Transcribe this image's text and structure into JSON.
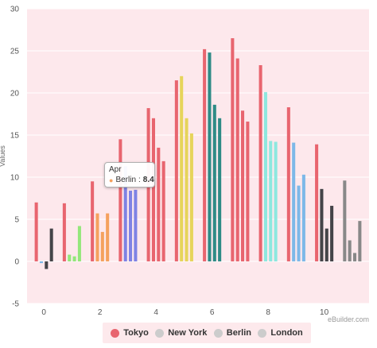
{
  "chart_data": {
    "type": "bar",
    "title": "",
    "xlabel": "",
    "ylabel": "Values",
    "xlim": [
      -0.6,
      11.6
    ],
    "ylim": [
      -5,
      30
    ],
    "x_ticks": [
      0,
      2,
      4,
      6,
      8,
      10
    ],
    "y_ticks": [
      -5,
      0,
      5,
      10,
      15,
      20,
      25,
      30
    ],
    "grid": "horizontal",
    "background": "#fde8ec",
    "legend_position": "bottom-center",
    "x": [
      0,
      1,
      2,
      3,
      4,
      5,
      6,
      7,
      8,
      9,
      10,
      11
    ],
    "series": [
      {
        "name": "Tokyo",
        "values": [
          7.0,
          6.9,
          9.5,
          14.5,
          18.2,
          21.5,
          25.2,
          26.5,
          23.3,
          18.3,
          13.9,
          9.6
        ]
      },
      {
        "name": "New York",
        "values": [
          -0.2,
          0.8,
          5.7,
          11.3,
          17.0,
          22.0,
          24.8,
          24.1,
          20.1,
          14.1,
          8.6,
          2.5
        ]
      },
      {
        "name": "Berlin",
        "values": [
          -0.9,
          0.6,
          3.5,
          8.4,
          13.5,
          17.0,
          18.6,
          17.9,
          14.3,
          9.0,
          3.9,
          1.0
        ]
      },
      {
        "name": "London",
        "values": [
          3.9,
          4.2,
          5.7,
          8.5,
          11.9,
          15.2,
          17.0,
          16.6,
          14.2,
          10.3,
          6.6,
          4.8
        ]
      }
    ],
    "point_colors": [
      "#e8656f",
      "#7db8e8",
      "#444448",
      "#444448",
      "#e8656f",
      "#93e77a",
      "#93e77a",
      "#93e77a",
      "#e8656f",
      "#f5a15e",
      "#f5a15e",
      "#f5a15e",
      "#e8656f",
      "#7e82e4",
      "#7e82e4",
      "#7e82e4",
      "#e8656f",
      "#e8656f",
      "#e8656f",
      "#e8656f",
      "#e8656f",
      "#e6d45a",
      "#e6d45a",
      "#e6d45a",
      "#e8656f",
      "#2e8b86",
      "#2e8b86",
      "#2e8b86",
      "#e8656f",
      "#e8656f",
      "#e8656f",
      "#e8656f",
      "#e8656f",
      "#8de8df",
      "#8de8df",
      "#8de8df",
      "#e8656f",
      "#7db8e8",
      "#7db8e8",
      "#7db8e8",
      "#e8656f",
      "#444448",
      "#444448",
      "#444448"
    ],
    "legend_swatch_colors": [
      "#e8656f",
      "#cccccc",
      "#cccccc",
      "#cccccc"
    ],
    "tooltip": {
      "header": "Apr",
      "series": "Berlin",
      "value": "8.4",
      "color": "#f5a15e"
    }
  },
  "ui": {
    "watermark": "eBuilder.com"
  }
}
